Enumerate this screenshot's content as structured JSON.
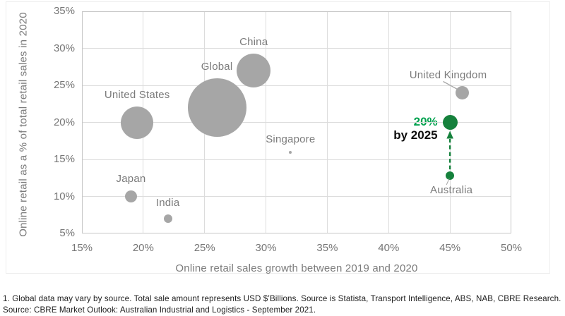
{
  "chart_data": {
    "type": "bubble",
    "title": "",
    "xlabel": "Online retail sales growth between 2019 and 2020",
    "ylabel": "Online retail as a % of total retail sales in 2020",
    "xlim": [
      15,
      50
    ],
    "ylim": [
      5,
      35
    ],
    "x_ticks": [
      15,
      20,
      25,
      30,
      35,
      40,
      45,
      50
    ],
    "y_ticks": [
      5,
      10,
      15,
      20,
      25,
      30,
      35
    ],
    "tick_suffix": "%",
    "grid": true,
    "legend": "none",
    "colors": {
      "bubble_gray": "#a6a6a6",
      "bubble_green": "#15813c",
      "annotation_green": "#00a14e",
      "label_gray": "#7b7b7b",
      "gridline": "#dcdcdc",
      "leader_line": "#a6a6a6"
    },
    "points": [
      {
        "id": "global",
        "label": "Global",
        "x": 26,
        "y": 22,
        "r": 41.5,
        "color": "gray",
        "label_pos": "above"
      },
      {
        "id": "united-states",
        "label": "United States",
        "x": 19.5,
        "y": 20,
        "r": 23,
        "color": "gray",
        "label_pos": "above"
      },
      {
        "id": "china",
        "label": "China",
        "x": 29,
        "y": 27,
        "r": 24,
        "color": "gray",
        "label_pos": "above"
      },
      {
        "id": "japan",
        "label": "Japan",
        "x": 19,
        "y": 10,
        "r": 8.5,
        "color": "gray",
        "label_pos": "above"
      },
      {
        "id": "india",
        "label": "India",
        "x": 22,
        "y": 7,
        "r": 6,
        "color": "gray",
        "label_pos": "above"
      },
      {
        "id": "singapore",
        "label": "Singapore",
        "x": 32,
        "y": 16,
        "r": 2,
        "color": "gray",
        "label_pos": "above"
      },
      {
        "id": "united-kingdom",
        "label": "United Kingdom",
        "x": 46,
        "y": 24,
        "r": 9.5,
        "color": "gray",
        "label_pos": "leader-upper-left"
      },
      {
        "id": "australia",
        "label": "Australia",
        "x": 45,
        "y": 12.8,
        "r": 6,
        "color": "green",
        "label_pos": "below-leader"
      },
      {
        "id": "australia-2025-target",
        "label": "",
        "x": 45,
        "y": 20,
        "r": 10.5,
        "color": "green",
        "label_pos": "none"
      }
    ],
    "annotation": {
      "line1": "20%",
      "line2": "by 2025",
      "attach_to": "australia-2025-target",
      "arrow_from": "australia",
      "arrow_style": "dashed-up"
    }
  },
  "footnotes": [
    "1. Global data may vary by source. Total sale amount represents USD $’Billions. Source is Statista, Transport Intelligence, ABS, NAB, CBRE Research.",
    "Source: CBRE Market Outlook: Australian Industrial and Logistics - September 2021."
  ]
}
